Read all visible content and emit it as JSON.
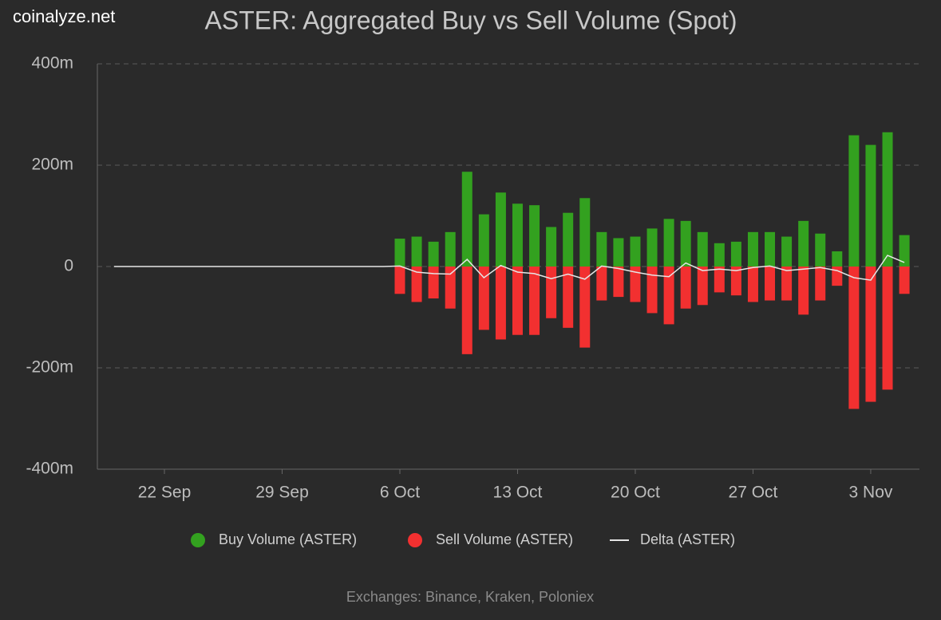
{
  "chart_data": {
    "type": "bar",
    "watermark": "coinalyze.net",
    "title": "ASTER: Aggregated Buy vs Sell Volume (Spot)",
    "caption": "Exchanges: Binance, Kraken, Poloniex",
    "categories": [
      null,
      null,
      null,
      "22 Sep",
      null,
      null,
      null,
      null,
      null,
      null,
      "29 Sep",
      null,
      null,
      null,
      null,
      null,
      null,
      "6 Oct",
      null,
      null,
      null,
      null,
      null,
      null,
      "13 Oct",
      null,
      null,
      null,
      null,
      null,
      null,
      "20 Oct",
      null,
      null,
      null,
      null,
      null,
      null,
      "27 Oct",
      null,
      null,
      null,
      null,
      null,
      null,
      "3 Nov",
      null,
      null
    ],
    "ylim": [
      -400,
      400
    ],
    "yticks": [
      {
        "value": -400,
        "label": "-400m"
      },
      {
        "value": -200,
        "label": "-200m"
      },
      {
        "value": 0,
        "label": "0"
      },
      {
        "value": 200,
        "label": "200m"
      },
      {
        "value": 400,
        "label": "400m"
      }
    ],
    "grid": true,
    "legend": "bottom",
    "series": [
      {
        "name": "Buy Volume (ASTER)",
        "type": "bar",
        "color": "#33a11f",
        "values": [
          null,
          null,
          null,
          null,
          null,
          null,
          null,
          null,
          null,
          null,
          null,
          null,
          null,
          null,
          null,
          null,
          null,
          55,
          59,
          49,
          68,
          187,
          103,
          146,
          124,
          121,
          78,
          106,
          135,
          68,
          56,
          59,
          75,
          94,
          90,
          68,
          46,
          49,
          68,
          68,
          59,
          90,
          65,
          30,
          259,
          240,
          265,
          62
        ]
      },
      {
        "name": "Sell Volume (ASTER)",
        "type": "bar",
        "color": "#f23030",
        "values": [
          null,
          null,
          null,
          null,
          null,
          null,
          null,
          null,
          null,
          null,
          null,
          null,
          null,
          null,
          null,
          null,
          null,
          -54,
          -70,
          -63,
          -83,
          -173,
          -125,
          -144,
          -135,
          -135,
          -102,
          -121,
          -160,
          -67,
          -60,
          -70,
          -92,
          -114,
          -83,
          -76,
          -51,
          -57,
          -70,
          -67,
          -67,
          -95,
          -67,
          -38,
          -281,
          -267,
          -243,
          -54
        ]
      },
      {
        "name": "Delta (ASTER)",
        "type": "line",
        "color": "#e6e6e6",
        "values": [
          0,
          0,
          0,
          0,
          0,
          0,
          0,
          0,
          0,
          0,
          0,
          0,
          0,
          0,
          0,
          0,
          0,
          1,
          -11,
          -14,
          -15,
          14,
          -22,
          2,
          -11,
          -14,
          -24,
          -15,
          -25,
          1,
          -4,
          -11,
          -17,
          -20,
          7,
          -8,
          -5,
          -8,
          -2,
          1,
          -8,
          -5,
          -2,
          -8,
          -22,
          -27,
          22,
          8
        ]
      }
    ]
  }
}
